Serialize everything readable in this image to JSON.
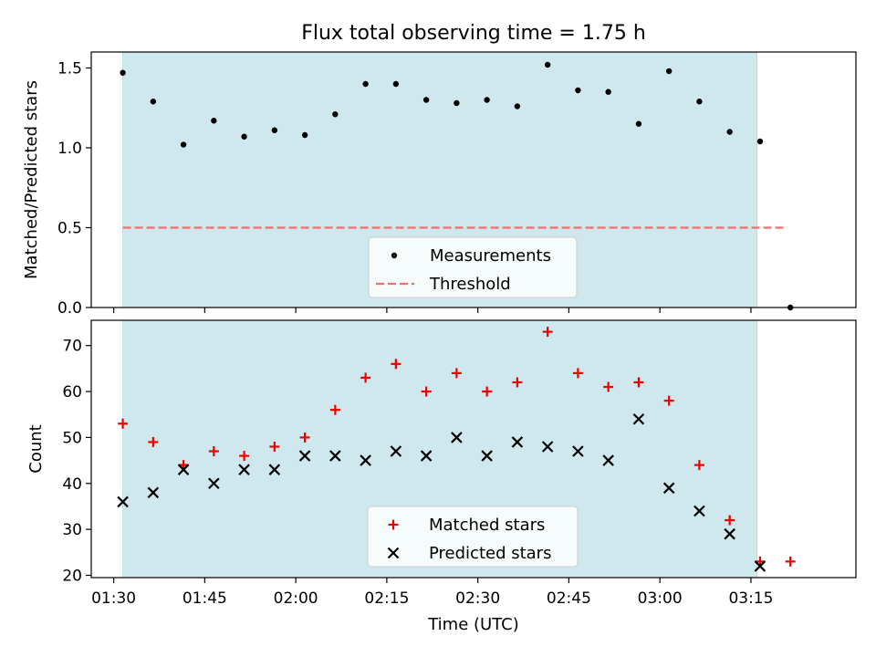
{
  "title": "Flux total observing time = 1.75 h",
  "colors": {
    "shade": "#cfe8ee",
    "threshold": "#f07070",
    "matched": "#ee0000",
    "predicted": "#000000",
    "measure": "#000000"
  },
  "chart_data": [
    {
      "type": "scatter",
      "ylabel": "Matched/Predicted stars",
      "ylim": [
        0,
        1.6
      ],
      "yticks": [
        "0.0",
        "0.5",
        "1.0",
        "1.5"
      ],
      "ytick_values": [
        0,
        0.5,
        1.0,
        1.5
      ],
      "shaded_span_minutes": [
        91.5,
        196.0
      ],
      "legend": {
        "placement": "lower-center",
        "entries": [
          "Measurements",
          "Threshold"
        ]
      },
      "threshold": {
        "name": "Threshold",
        "y": 0.5,
        "x_range_minutes": [
          91.5,
          201.0
        ]
      },
      "series": [
        {
          "name": "Measurements",
          "x_minutes": [
            91.5,
            96.5,
            101.5,
            106.5,
            111.5,
            116.5,
            121.5,
            126.5,
            131.5,
            136.5,
            141.5,
            146.5,
            151.5,
            156.5,
            161.5,
            166.5,
            171.5,
            176.5,
            181.5,
            186.5,
            191.5,
            196.5,
            201.5
          ],
          "values": [
            1.47,
            1.29,
            1.02,
            1.17,
            1.07,
            1.11,
            1.08,
            1.21,
            1.4,
            1.4,
            1.3,
            1.28,
            1.3,
            1.26,
            1.52,
            1.36,
            1.35,
            1.15,
            1.48,
            1.29,
            1.1,
            1.04,
            0.0
          ]
        }
      ]
    },
    {
      "type": "scatter",
      "ylabel": "Count",
      "xlabel": "Time (UTC)",
      "ylim": [
        19.5,
        75.5
      ],
      "yticks": [
        "20",
        "30",
        "40",
        "50",
        "60",
        "70"
      ],
      "ytick_values": [
        20,
        30,
        40,
        50,
        60,
        70
      ],
      "xticks": [
        "01:30",
        "01:45",
        "02:00",
        "02:15",
        "02:30",
        "02:45",
        "03:00",
        "03:15"
      ],
      "xtick_minutes": [
        90,
        105,
        120,
        135,
        150,
        165,
        180,
        195
      ],
      "xlim_minutes": [
        86.3,
        212.3
      ],
      "shaded_span_minutes": [
        91.5,
        196.0
      ],
      "legend": {
        "placement": "lower-center",
        "entries": [
          "Matched stars",
          "Predicted stars"
        ]
      },
      "series": [
        {
          "name": "Matched stars",
          "x_minutes": [
            91.5,
            96.5,
            101.5,
            106.5,
            111.5,
            116.5,
            121.5,
            126.5,
            131.5,
            136.5,
            141.5,
            146.5,
            151.5,
            156.5,
            161.5,
            166.5,
            171.5,
            176.5,
            181.5,
            186.5,
            191.5,
            196.5,
            201.5
          ],
          "values": [
            53,
            49,
            44,
            47,
            46,
            48,
            50,
            56,
            63,
            66,
            60,
            64,
            60,
            62,
            73,
            64,
            61,
            62,
            58,
            44,
            32,
            23,
            23
          ]
        },
        {
          "name": "Predicted stars",
          "x_minutes": [
            91.5,
            96.5,
            101.5,
            106.5,
            111.5,
            116.5,
            121.5,
            126.5,
            131.5,
            136.5,
            141.5,
            146.5,
            151.5,
            156.5,
            161.5,
            166.5,
            171.5,
            176.5,
            181.5,
            186.5,
            191.5,
            196.5
          ],
          "values": [
            36,
            38,
            43,
            40,
            43,
            43,
            46,
            46,
            45,
            47,
            46,
            50,
            46,
            49,
            48,
            47,
            45,
            54,
            39,
            34,
            29,
            22
          ]
        }
      ]
    }
  ]
}
